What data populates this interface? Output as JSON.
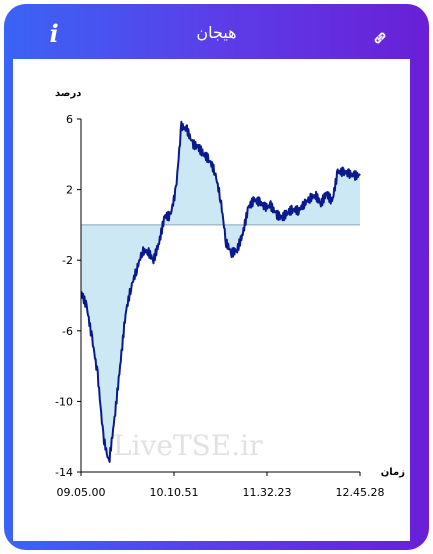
{
  "header": {
    "title": "هیجان",
    "info_icon": "info-icon",
    "link_icon": "link-icon"
  },
  "colors": {
    "gradient_start": "#3a64f6",
    "gradient_end": "#6a1fd6",
    "line": "#0a1a8c",
    "fill": "#cce8f4"
  },
  "watermark": "LiveTSE.ir",
  "chart_data": {
    "type": "area",
    "title": "",
    "ylabel": "درصد",
    "xlabel": "زمان",
    "ylim": [
      -14,
      6
    ],
    "y_ticks": [
      "6",
      "2",
      "-2",
      "-6",
      "-10",
      "-14"
    ],
    "x_ticks": [
      "09.05.00",
      "10.10.51",
      "11.32.23",
      "12.45.28"
    ],
    "baseline": 0,
    "grid": false,
    "x": [
      0,
      0.02,
      0.04,
      0.06,
      0.08,
      0.1,
      0.12,
      0.14,
      0.16,
      0.18,
      0.2,
      0.22,
      0.24,
      0.26,
      0.28,
      0.3,
      0.32,
      0.34,
      0.36,
      0.38,
      0.4,
      0.42,
      0.44,
      0.46,
      0.48,
      0.5,
      0.52,
      0.54,
      0.56,
      0.58,
      0.6,
      0.62,
      0.64,
      0.66,
      0.68,
      0.7,
      0.72,
      0.74,
      0.76,
      0.78,
      0.8,
      0.82,
      0.84,
      0.86,
      0.88,
      0.9,
      0.92,
      0.94,
      0.96,
      0.98,
      1.0
    ],
    "values": [
      -3.8,
      -4.6,
      -6.5,
      -8.5,
      -12.0,
      -13.5,
      -11.0,
      -8.0,
      -5.0,
      -3.5,
      -2.5,
      -1.5,
      -1.5,
      -2.0,
      -1.0,
      0.5,
      0.5,
      2.0,
      5.6,
      5.4,
      4.6,
      4.4,
      4.0,
      3.7,
      3.0,
      1.5,
      -1.0,
      -1.6,
      -1.4,
      -0.5,
      1.0,
      1.4,
      1.3,
      1.0,
      1.1,
      0.6,
      0.4,
      0.7,
      0.9,
      0.8,
      1.2,
      1.5,
      1.7,
      1.2,
      1.8,
      1.3,
      3.0,
      3.0,
      2.9,
      2.8,
      2.8
    ]
  }
}
